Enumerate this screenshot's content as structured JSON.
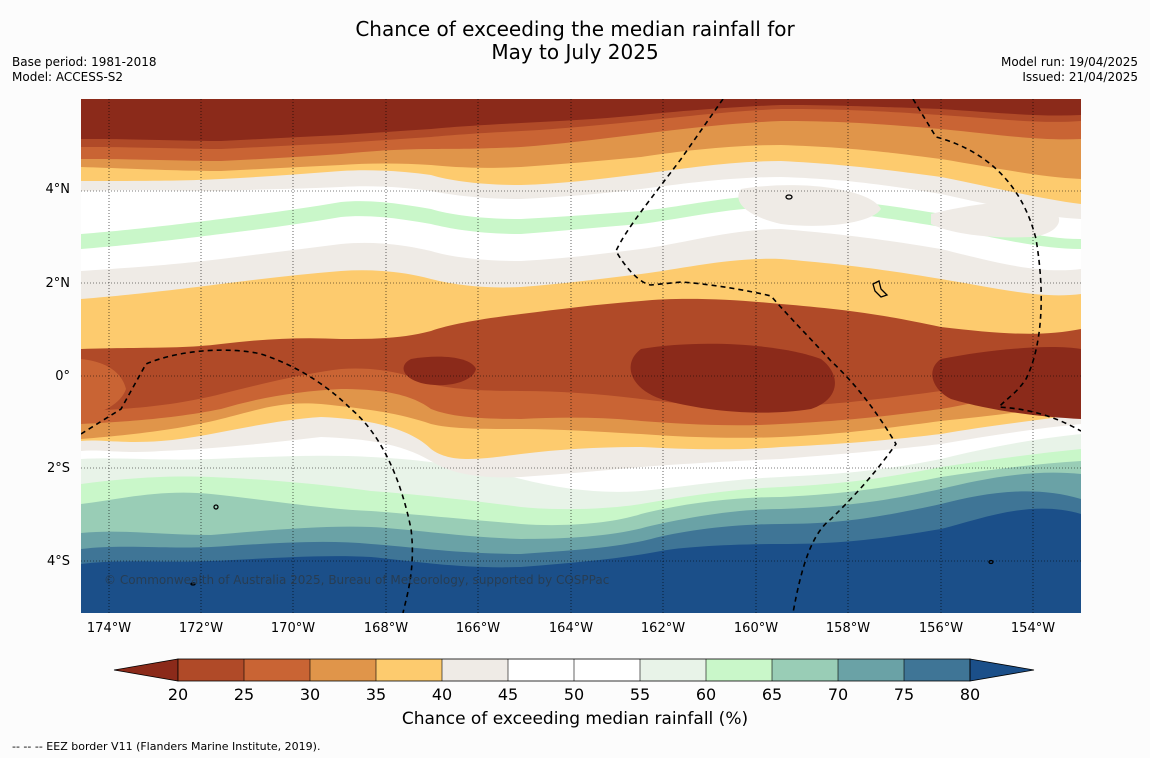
{
  "title_line1": "Chance of exceeding the median rainfall for",
  "title_line2": "May to July 2025",
  "meta_left": {
    "base_period": "Base period: 1981-2018",
    "model": "Model: ACCESS-S2"
  },
  "meta_right": {
    "model_run": "Model run: 19/04/2025",
    "issued": "Issued: 21/04/2025"
  },
  "map": {
    "lon_range": [
      -174.6,
      -153.0
    ],
    "lat_range": [
      -5.1,
      5.8
    ],
    "lat_labels": [
      "4°N",
      "2°N",
      "0°",
      "2°S",
      "4°S"
    ],
    "lon_labels": [
      "174°W",
      "172°W",
      "170°W",
      "168°W",
      "166°W",
      "164°W",
      "162°W",
      "160°W",
      "158°W",
      "156°W",
      "154°W"
    ],
    "copyright": "© Commonwealth of Australia 2025, Bureau of Meteorology, supported by COSPPac"
  },
  "colorbar": {
    "ticks": [
      "20",
      "25",
      "30",
      "35",
      "40",
      "45",
      "50",
      "55",
      "60",
      "65",
      "70",
      "75",
      "80"
    ],
    "colors": [
      "#8b2a1a",
      "#b04a28",
      "#c96434",
      "#e0954a",
      "#fdcb6e",
      "#efebe6",
      "#ffffff",
      "#ffffff",
      "#e8f3e8",
      "#c9f7c9",
      "#99cdb6",
      "#6aa2a6",
      "#3f7596",
      "#1b4f89"
    ],
    "label": "Chance of exceeding median rainfall (%)"
  },
  "footer": "--  --  -- EEZ border V11 (Flanders Marine Institute, 2019)."
}
